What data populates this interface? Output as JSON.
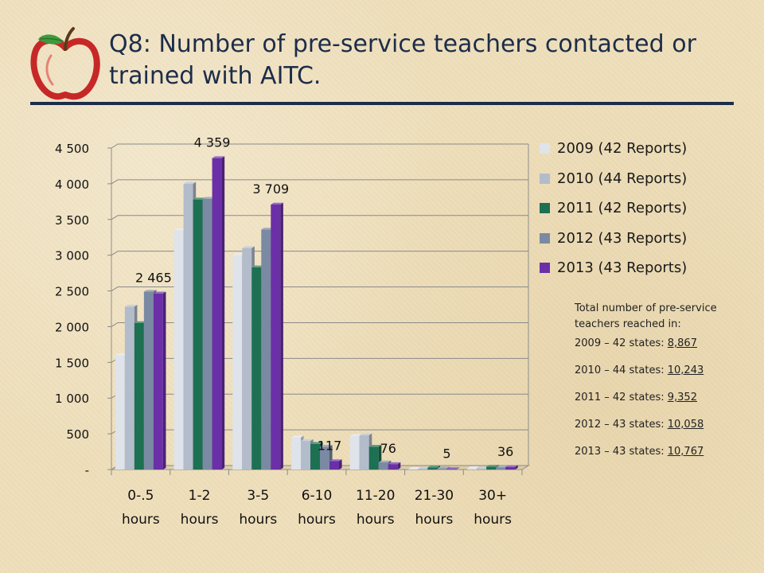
{
  "page": {
    "title": "Q8: Number of pre-service teachers contacted or trained with AITC."
  },
  "colors": {
    "title": "#1c2d4a",
    "apple_red": "#c62828",
    "leaf_green": "#3d9b3d"
  },
  "chart_data": {
    "type": "bar",
    "style": "3d-clustered-column",
    "title": "",
    "xlabel": "",
    "ylabel": "",
    "ylim": [
      0,
      4500
    ],
    "yticks": [
      0,
      500,
      1000,
      1500,
      2000,
      2500,
      3000,
      3500,
      4000,
      4500
    ],
    "ytick_labels": [
      "-",
      "500",
      "1 000",
      "1 500",
      "2 000",
      "2 500",
      "3 000",
      "3 500",
      "4 000",
      "4 500"
    ],
    "grid": true,
    "legend_position": "right",
    "categories": [
      "0-.5 hours",
      "1-2 hours",
      "3-5 hours",
      "6-10 hours",
      "11-20 hours",
      "21-30 hours",
      "30+ hours"
    ],
    "category_lines": [
      [
        "0-.5",
        "hours"
      ],
      [
        "1-2",
        "hours"
      ],
      [
        "3-5",
        "hours"
      ],
      [
        "6-10",
        "hours"
      ],
      [
        "11-20",
        "hours"
      ],
      [
        "21-30",
        "hours"
      ],
      [
        "30+",
        "hours"
      ]
    ],
    "series": [
      {
        "name": "2009 (42 Reports)",
        "color": "#dfe3ea",
        "values": [
          1600,
          3350,
          3000,
          450,
          470,
          10,
          20
        ]
      },
      {
        "name": "2010 (44 Reports)",
        "color": "#b3bccb",
        "values": [
          2280,
          4000,
          3100,
          400,
          480,
          15,
          15
        ]
      },
      {
        "name": "2011 (42 Reports)",
        "color": "#1d7052",
        "values": [
          2050,
          3780,
          2830,
          360,
          320,
          30,
          40
        ]
      },
      {
        "name": "2012 (43 Reports)",
        "color": "#7b8aa3",
        "values": [
          2490,
          3790,
          3360,
          320,
          100,
          15,
          30
        ]
      },
      {
        "name": "2013 (43 Reports)",
        "color": "#6b2fa8",
        "values": [
          2465,
          4359,
          3709,
          117,
          76,
          5,
          36
        ]
      }
    ],
    "data_labels": [
      {
        "category_index": 0,
        "series_index": 4,
        "text": "2 465"
      },
      {
        "category_index": 1,
        "series_index": 4,
        "text": "4 359"
      },
      {
        "category_index": 2,
        "series_index": 4,
        "text": "3 709"
      },
      {
        "category_index": 3,
        "series_index": 4,
        "text": "117"
      },
      {
        "category_index": 4,
        "series_index": 4,
        "text": "76"
      },
      {
        "category_index": 5,
        "series_index": 4,
        "text": "5"
      },
      {
        "category_index": 6,
        "series_index": 4,
        "text": "36"
      }
    ]
  },
  "totals": {
    "heading": "Total number of pre-service teachers reached in:",
    "lines": [
      {
        "prefix": "2009 – 42 states: ",
        "value": "8,867"
      },
      {
        "prefix": "2010 – 44 states: ",
        "value": "10,243"
      },
      {
        "prefix": "2011 – 42 states: ",
        "value": "9,352"
      },
      {
        "prefix": "2012 – 43 states: ",
        "value": "10,058"
      },
      {
        "prefix": "2013 – 43 states: ",
        "value": "10,767"
      }
    ]
  }
}
